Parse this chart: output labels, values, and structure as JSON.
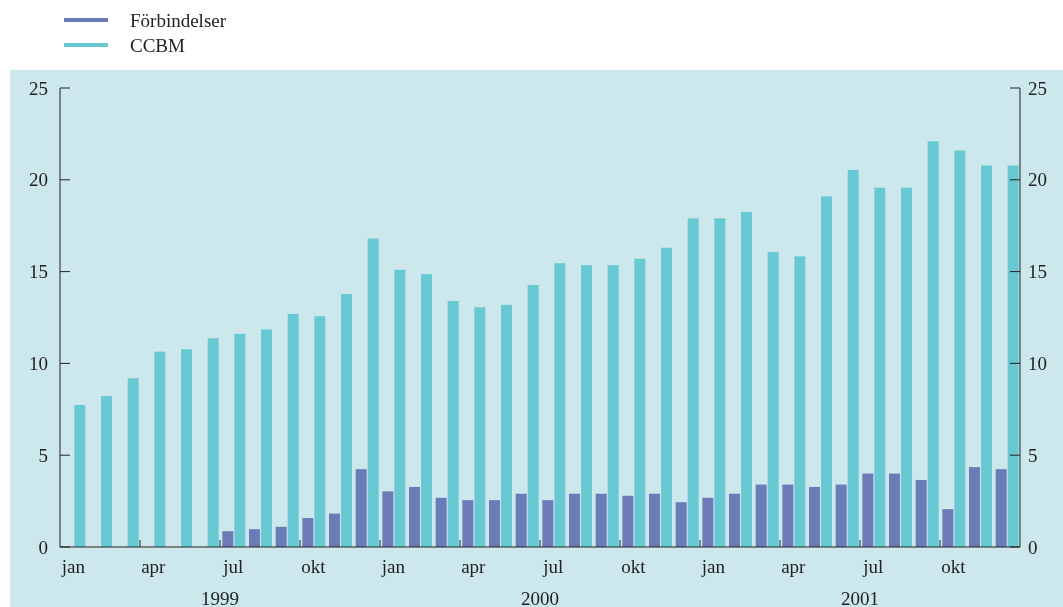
{
  "chart_data": {
    "type": "bar",
    "categories": [
      "jan",
      null,
      null,
      "apr",
      null,
      null,
      "jul",
      null,
      null,
      "okt",
      null,
      null,
      "jan",
      null,
      null,
      "apr",
      null,
      null,
      "jul",
      null,
      null,
      "okt",
      null,
      null,
      "jan",
      null,
      null,
      "apr",
      null,
      null,
      "jul",
      null,
      null,
      "okt",
      null,
      null
    ],
    "series": [
      {
        "name": "Förbindelser",
        "color": "#6b7bb8",
        "values": [
          null,
          null,
          null,
          null,
          null,
          null,
          0.86,
          0.97,
          1.1,
          1.58,
          1.82,
          4.24,
          3.03,
          3.27,
          2.68,
          2.55,
          2.55,
          2.9,
          2.55,
          2.9,
          2.9,
          2.79,
          2.9,
          2.44,
          2.68,
          2.9,
          3.4,
          3.4,
          3.27,
          3.4,
          4.0,
          4.0,
          3.65,
          2.06,
          4.35,
          4.24
        ]
      },
      {
        "name": "CCBM",
        "color": "#69c9d3",
        "values": [
          7.74,
          8.22,
          9.19,
          10.64,
          10.77,
          11.37,
          11.61,
          11.85,
          12.7,
          12.57,
          13.78,
          16.8,
          15.1,
          14.86,
          13.4,
          13.06,
          13.19,
          14.27,
          15.46,
          15.35,
          15.35,
          15.7,
          16.3,
          17.9,
          17.9,
          18.25,
          16.07,
          15.83,
          19.1,
          20.54,
          19.57,
          19.57,
          22.1,
          21.6,
          20.78,
          20.78
        ]
      }
    ],
    "ylim": [
      0,
      25
    ],
    "yticks": [
      0,
      5,
      10,
      15,
      20,
      25
    ],
    "y2lim": [
      0,
      25
    ],
    "y2ticks": [
      0,
      5,
      10,
      15,
      20,
      25
    ],
    "annotations": [
      "1999",
      "2000",
      "2001"
    ],
    "grid": false,
    "legend": "top left"
  }
}
